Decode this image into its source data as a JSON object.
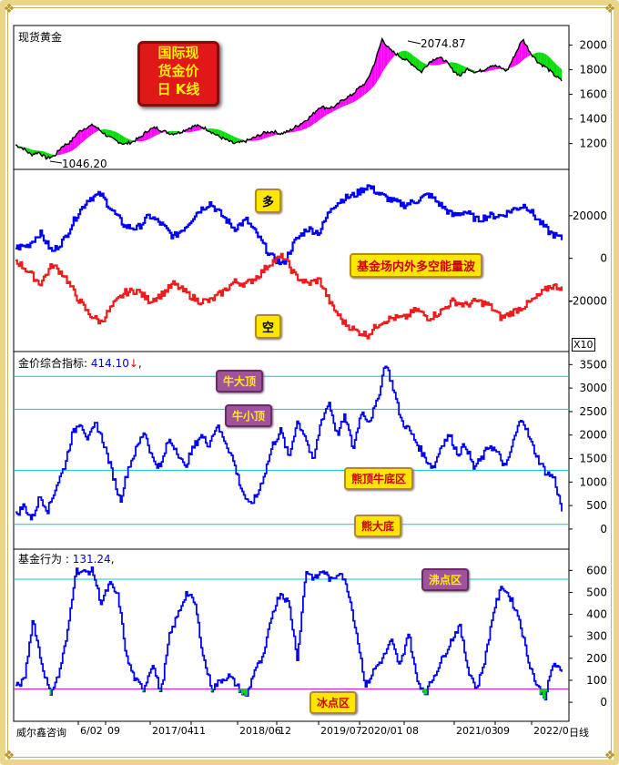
{
  "panels": {
    "price": {
      "title": "现货黄金",
      "high_label": "2074.87",
      "low_label": "1046.20",
      "promo": [
        "国际现",
        "货金价",
        "日 K线"
      ]
    },
    "flow": {
      "long_label": "多",
      "short_label": "空",
      "promo": "基金场内外多空能量波",
      "scale_badge": "X10"
    },
    "index": {
      "title_prefix": "金价综合指标: ",
      "value": "414.10",
      "arrow": "↓",
      "title_suffix": ",",
      "zones": {
        "bull_top": "牛大顶",
        "bull_small_top": "牛小顶",
        "bear_top_bull_bottom": "熊顶牛底区",
        "bear_bottom": "熊大底"
      }
    },
    "fund": {
      "title_prefix": "基金行为 : ",
      "value": "131.24",
      "title_suffix": ",",
      "zones": {
        "boiling": "沸点区",
        "freezing": "冰点区"
      }
    }
  },
  "footer": {
    "brand": "威尔鑫咨询",
    "period": "日线",
    "dates": [
      "6/02",
      "09",
      "2017/04",
      "11",
      "2018/06",
      "12",
      "2019/07",
      "2020/01",
      "08",
      "2021/03",
      "09",
      "2022/0"
    ]
  },
  "colors": {
    "price_line": "#000000",
    "above_fill": "#ff00ff",
    "below_fill": "#00dd00",
    "long": "#0000ff",
    "short": "#ee1c1c",
    "ref_line": "#00cccc",
    "freeze_line": "#cc00cc"
  },
  "chart_data": [
    {
      "type": "line",
      "title": "现货黄金",
      "ylim": [
        1020,
        2130
      ],
      "yticks": [
        1200,
        1400,
        1600,
        1800,
        2000
      ],
      "series": [
        {
          "name": "现货黄金",
          "values": [
            1190,
            1160,
            1110,
            1130,
            1080,
            1100,
            1180,
            1210,
            1290,
            1330,
            1350,
            1300,
            1250,
            1220,
            1195,
            1215,
            1250,
            1310,
            1330,
            1300,
            1280,
            1290,
            1320,
            1345,
            1335,
            1300,
            1260,
            1230,
            1200,
            1210,
            1230,
            1260,
            1290,
            1300,
            1280,
            1300,
            1340,
            1380,
            1430,
            1500,
            1490,
            1500,
            1560,
            1590,
            1650,
            1700,
            1850,
            2050,
            1960,
            1920,
            1880,
            1840,
            1780,
            1860,
            1900,
            1880,
            1800,
            1750,
            1810,
            1780,
            1800,
            1840,
            1820,
            1790,
            1920,
            2050,
            1940,
            1860,
            1820,
            1760,
            1710
          ]
        }
      ]
    },
    {
      "type": "line",
      "ylim": [
        -42000,
        40000
      ],
      "yticks": [
        -20000,
        0,
        20000
      ],
      "series": [
        {
          "name": "多",
          "values": [
            5000,
            6000,
            12000,
            3000,
            9000,
            20000,
            28000,
            30000,
            22000,
            15000,
            14000,
            20000,
            16000,
            10000,
            15000,
            22000,
            26000,
            20000,
            14000,
            18000,
            10000,
            1000,
            -3000,
            8000,
            14000,
            12000,
            24000,
            28000,
            30000,
            34000,
            30000,
            27000,
            25000,
            27000,
            30000,
            25000,
            20000,
            22000,
            18000,
            20000,
            20000,
            23000,
            25000,
            18000,
            12000,
            9000
          ]
        },
        {
          "name": "空",
          "values": [
            -1000,
            -6000,
            -12000,
            -3000,
            -8000,
            -18000,
            -26000,
            -30000,
            -22000,
            -16000,
            -15000,
            -20000,
            -17000,
            -12000,
            -16000,
            -20000,
            -20000,
            -16000,
            -11000,
            -12000,
            -8000,
            -2000,
            1000,
            -8000,
            -12000,
            -10000,
            -22000,
            -30000,
            -34000,
            -36000,
            -30000,
            -28000,
            -28000,
            -24000,
            -28000,
            -25000,
            -20000,
            -22000,
            -20000,
            -22000,
            -28000,
            -25000,
            -22000,
            -18000,
            -13000,
            -13500
          ]
        }
      ]
    },
    {
      "type": "line",
      "title": "金价综合指标",
      "ylim": [
        -350,
        3700
      ],
      "yticks": [
        0,
        500,
        1000,
        1500,
        2000,
        2500,
        3000,
        3500
      ],
      "reference_lines": [
        {
          "label": "牛大顶",
          "value": 3250
        },
        {
          "label": "牛小顶",
          "value": 2550
        },
        {
          "label": "熊顶牛底区",
          "value": 1250
        },
        {
          "label": "熊大底",
          "value": 100
        }
      ],
      "series": [
        {
          "name": "金价综合指标",
          "values": [
            300,
            500,
            200,
            700,
            400,
            900,
            1300,
            2000,
            2300,
            1900,
            2250,
            1800,
            1200,
            600,
            1300,
            1700,
            2100,
            1500,
            1300,
            1900,
            1700,
            1300,
            1700,
            2000,
            1800,
            2200,
            1900,
            1500,
            900,
            500,
            700,
            1200,
            1800,
            2100,
            1500,
            2300,
            2000,
            1400,
            2300,
            2700,
            2000,
            2400,
            1700,
            2500,
            2300,
            2700,
            3550,
            3000,
            2300,
            2100,
            1800,
            1500,
            1300,
            1800,
            2000,
            1600,
            1800,
            1300,
            1500,
            1800,
            1600,
            1300,
            1900,
            2400,
            1900,
            1500,
            1200,
            1100,
            400
          ]
        }
      ]
    },
    {
      "type": "line",
      "title": "基金行为",
      "ylim": [
        -70,
        680
      ],
      "yticks": [
        0,
        100,
        200,
        300,
        400,
        500,
        600
      ],
      "reference_lines": [
        {
          "label": "沸点区",
          "value": 560
        },
        {
          "label": "冰点区",
          "value": 60
        }
      ],
      "series": [
        {
          "name": "基金行为",
          "values": [
            70,
            100,
            380,
            180,
            40,
            120,
            300,
            600,
            590,
            600,
            450,
            540,
            480,
            200,
            100,
            60,
            180,
            40,
            300,
            400,
            500,
            450,
            200,
            60,
            100,
            120,
            70,
            20,
            150,
            200,
            400,
            500,
            450,
            200,
            600,
            560,
            600,
            550,
            600,
            500,
            300,
            70,
            150,
            200,
            280,
            160,
            320,
            100,
            40,
            120,
            200,
            280,
            350,
            150,
            60,
            200,
            420,
            530,
            470,
            380,
            200,
            80,
            20,
            180,
            131
          ]
        }
      ]
    }
  ]
}
